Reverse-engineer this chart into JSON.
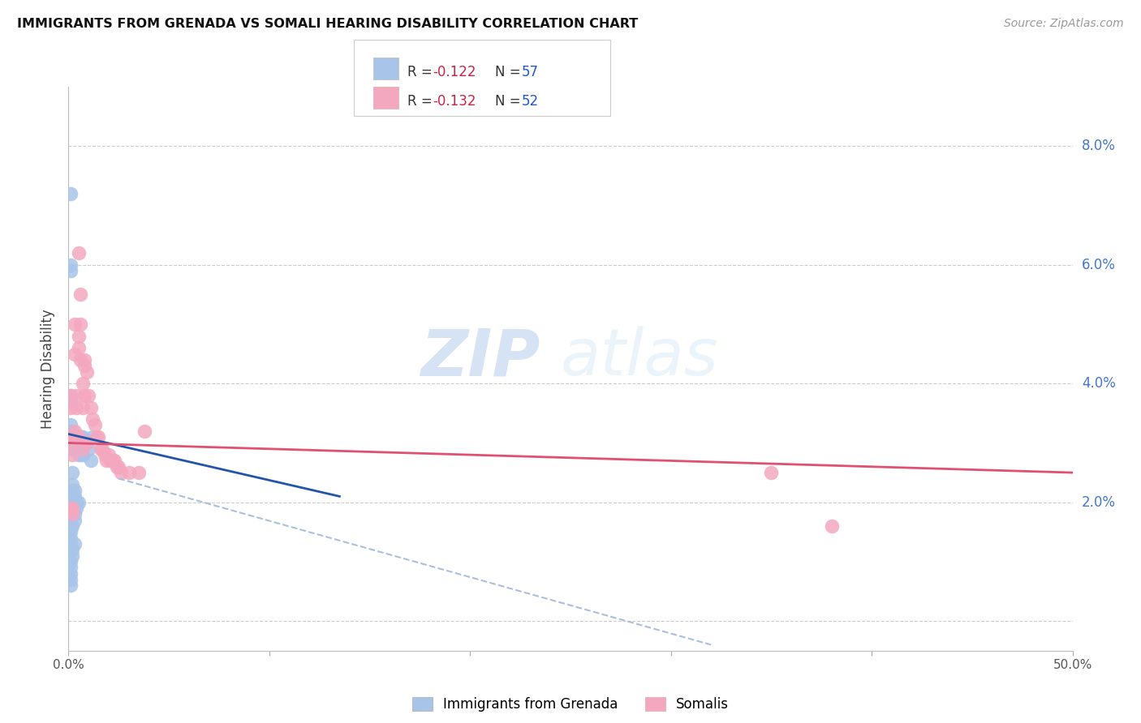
{
  "title": "IMMIGRANTS FROM GRENADA VS SOMALI HEARING DISABILITY CORRELATION CHART",
  "source": "Source: ZipAtlas.com",
  "ylabel": "Hearing Disability",
  "color_blue": "#A8C4E8",
  "color_pink": "#F4A8C0",
  "color_blue_line": "#2255AA",
  "color_pink_line": "#E05070",
  "color_dashed_line": "#AABFDE",
  "legend_blue_label": "Immigrants from Grenada",
  "legend_pink_label": "Somalis",
  "legend_r_color": "#CC2244",
  "legend_n_color": "#2255CC",
  "watermark_zip": "ZIP",
  "watermark_atlas": "atlas",
  "xlim": [
    0.0,
    0.5
  ],
  "ylim": [
    -0.005,
    0.09
  ],
  "grid_yticks": [
    0.0,
    0.02,
    0.04,
    0.06,
    0.08
  ],
  "right_yticklabels": [
    "",
    "2.0%",
    "4.0%",
    "6.0%",
    "8.0%"
  ],
  "xticks": [
    0.0,
    0.1,
    0.2,
    0.3,
    0.4,
    0.5
  ],
  "xticklabels": [
    "0.0%",
    "",
    "",
    "",
    "",
    "50.0%"
  ],
  "blue_line_x": [
    0.0,
    0.135
  ],
  "blue_line_y": [
    0.0315,
    0.021
  ],
  "pink_line_x": [
    0.0,
    0.5
  ],
  "pink_line_y": [
    0.03,
    0.025
  ],
  "dashed_line_x": [
    0.025,
    0.32
  ],
  "dashed_line_y": [
    0.024,
    -0.004
  ],
  "blue_points_x": [
    0.001,
    0.001,
    0.001,
    0.001,
    0.001,
    0.001,
    0.001,
    0.001,
    0.001,
    0.001,
    0.002,
    0.002,
    0.002,
    0.002,
    0.002,
    0.002,
    0.002,
    0.002,
    0.002,
    0.003,
    0.003,
    0.003,
    0.003,
    0.003,
    0.003,
    0.004,
    0.004,
    0.004,
    0.004,
    0.005,
    0.005,
    0.005,
    0.006,
    0.006,
    0.007,
    0.007,
    0.008,
    0.009,
    0.01,
    0.011,
    0.012,
    0.001,
    0.001,
    0.001,
    0.002,
    0.003,
    0.001,
    0.001,
    0.002,
    0.002,
    0.003,
    0.001,
    0.001,
    0.001,
    0.001,
    0.001
  ],
  "blue_points_y": [
    0.072,
    0.06,
    0.059,
    0.038,
    0.037,
    0.033,
    0.032,
    0.031,
    0.03,
    0.029,
    0.032,
    0.031,
    0.03,
    0.025,
    0.023,
    0.022,
    0.021,
    0.02,
    0.019,
    0.031,
    0.03,
    0.029,
    0.022,
    0.021,
    0.018,
    0.031,
    0.03,
    0.02,
    0.019,
    0.031,
    0.028,
    0.02,
    0.031,
    0.028,
    0.031,
    0.028,
    0.03,
    0.03,
    0.029,
    0.027,
    0.031,
    0.016,
    0.015,
    0.014,
    0.016,
    0.017,
    0.013,
    0.012,
    0.012,
    0.011,
    0.013,
    0.01,
    0.009,
    0.008,
    0.007,
    0.006
  ],
  "pink_points_x": [
    0.001,
    0.001,
    0.001,
    0.002,
    0.002,
    0.002,
    0.002,
    0.002,
    0.003,
    0.003,
    0.003,
    0.003,
    0.004,
    0.004,
    0.004,
    0.005,
    0.005,
    0.005,
    0.006,
    0.006,
    0.007,
    0.007,
    0.007,
    0.008,
    0.008,
    0.009,
    0.009,
    0.01,
    0.011,
    0.012,
    0.013,
    0.014,
    0.015,
    0.016,
    0.017,
    0.018,
    0.019,
    0.02,
    0.021,
    0.022,
    0.023,
    0.024,
    0.025,
    0.026,
    0.03,
    0.035,
    0.038,
    0.35,
    0.38,
    0.005,
    0.006,
    0.008
  ],
  "pink_points_y": [
    0.038,
    0.036,
    0.019,
    0.031,
    0.03,
    0.028,
    0.019,
    0.018,
    0.032,
    0.031,
    0.05,
    0.045,
    0.038,
    0.036,
    0.031,
    0.048,
    0.046,
    0.031,
    0.05,
    0.044,
    0.04,
    0.036,
    0.029,
    0.044,
    0.038,
    0.042,
    0.03,
    0.038,
    0.036,
    0.034,
    0.033,
    0.031,
    0.031,
    0.029,
    0.029,
    0.028,
    0.027,
    0.028,
    0.027,
    0.027,
    0.027,
    0.026,
    0.026,
    0.025,
    0.025,
    0.025,
    0.032,
    0.025,
    0.016,
    0.062,
    0.055,
    0.043
  ]
}
